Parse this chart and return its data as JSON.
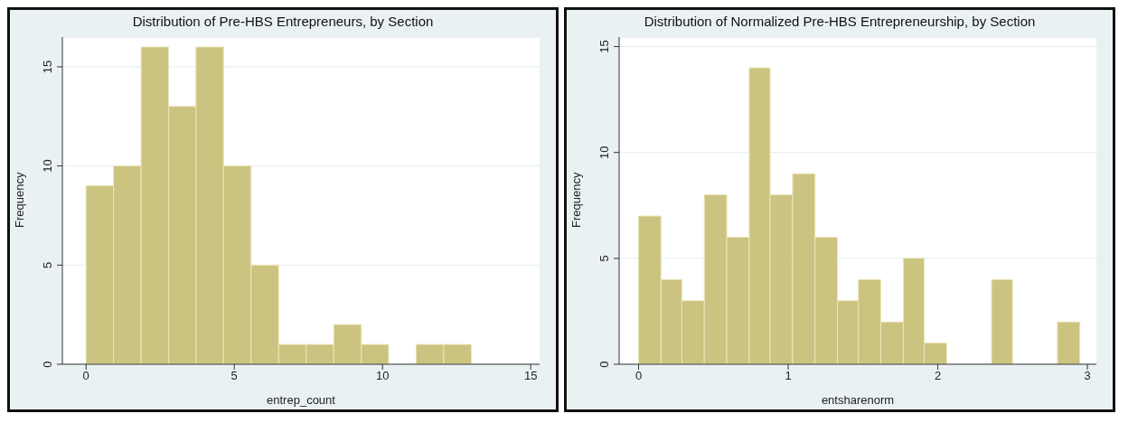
{
  "chart_data": [
    {
      "type": "histogram",
      "title": "Distribution of Pre-HBS Entrepreneurs, by Section",
      "xlabel": "entrep_count",
      "ylabel": "Frequency",
      "color": "#cbc380",
      "bins": [
        0,
        0.93,
        1.86,
        2.79,
        3.71,
        4.64,
        5.57,
        6.5,
        7.43,
        8.36,
        9.29,
        10.21,
        11.14,
        12.07,
        13
      ],
      "values": [
        9,
        10,
        16,
        13,
        16,
        10,
        5,
        1,
        1,
        2,
        1,
        0,
        1,
        1
      ],
      "xlim": [
        -0.8,
        15.3
      ],
      "xticks": [
        0,
        5,
        10,
        15
      ],
      "ylim": [
        0,
        16.5
      ],
      "yticks": [
        0,
        5,
        10,
        15
      ],
      "grid": "y"
    },
    {
      "type": "histogram",
      "title": "Distribution of Normalized Pre-HBS Entrepreneurship, by Section",
      "xlabel": "entsharenorm",
      "ylabel": "Frequency",
      "color": "#cbc380",
      "bins": [
        0,
        0.15,
        0.29,
        0.44,
        0.59,
        0.74,
        0.88,
        1.03,
        1.18,
        1.33,
        1.47,
        1.62,
        1.77,
        1.91,
        2.06,
        2.36,
        2.5,
        2.8,
        2.95
      ],
      "values": [
        7,
        4,
        3,
        8,
        6,
        14,
        8,
        9,
        6,
        3,
        4,
        2,
        5,
        1,
        0,
        4,
        0,
        2
      ],
      "xlim": [
        -0.13,
        3.06
      ],
      "xticks": [
        0,
        1,
        2,
        3
      ],
      "ylim": [
        0,
        15.45
      ],
      "yticks": [
        0,
        5,
        10,
        15
      ],
      "grid": "y"
    }
  ]
}
